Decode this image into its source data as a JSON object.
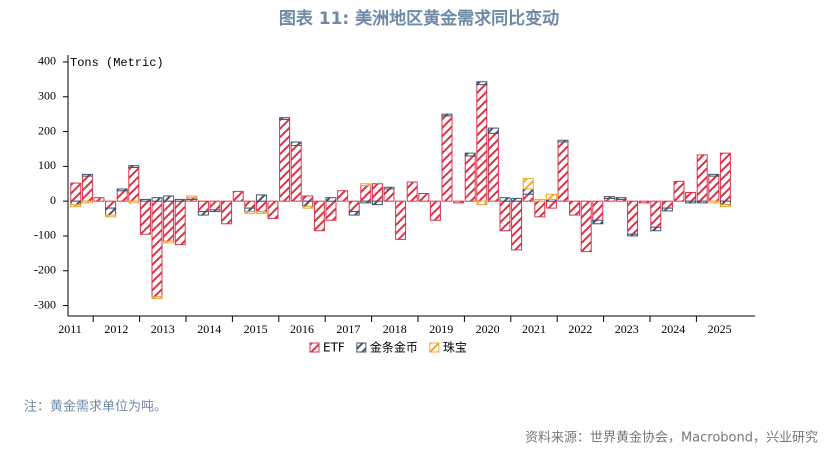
{
  "chart_data": {
    "type": "stacked-bar",
    "title": "图表 11: 美洲地区黄金需求同比变动",
    "y_label": "Tons (Metric)",
    "note": "注：黄金需求单位为吨。",
    "source": "资料来源：世界黄金协会，Macrobond，兴业研究",
    "categories": [
      "2011",
      null,
      null,
      null,
      "2012",
      null,
      null,
      null,
      "2013",
      null,
      null,
      null,
      "2014",
      null,
      null,
      null,
      "2015",
      null,
      null,
      null,
      "2016",
      null,
      null,
      null,
      "2017",
      null,
      null,
      null,
      "2018",
      null,
      null,
      null,
      "2019",
      null,
      null,
      null,
      "2020",
      null,
      null,
      null,
      "2021",
      null,
      null,
      null,
      "2022",
      null,
      null,
      null,
      "2023",
      null,
      null,
      null,
      "2024",
      null,
      null,
      null,
      "2025"
    ],
    "series": [
      {
        "name": "ETF",
        "color": "#d9344a",
        "values": [
          52,
          72,
          10,
          -20,
          30,
          97,
          -95,
          -275,
          -115,
          -125,
          5,
          -30,
          -25,
          -65,
          28,
          -20,
          -30,
          -50,
          235,
          160,
          15,
          -85,
          -55,
          30,
          -30,
          45,
          50,
          35,
          -110,
          55,
          22,
          -55,
          245,
          -5,
          130,
          335,
          195,
          -85,
          -140,
          20,
          -45,
          -20,
          170,
          -40,
          -145,
          -55,
          8,
          5,
          -95,
          -5,
          -75,
          -20,
          57,
          25,
          133,
          72,
          138
        ]
      },
      {
        "name": "金条金币",
        "color": "#44546a",
        "values": [
          -10,
          5,
          0,
          -20,
          5,
          5,
          5,
          10,
          15,
          5,
          5,
          -10,
          -5,
          0,
          0,
          -10,
          18,
          0,
          5,
          10,
          -15,
          0,
          10,
          0,
          -10,
          -5,
          -10,
          5,
          0,
          0,
          0,
          0,
          5,
          0,
          8,
          8,
          15,
          10,
          8,
          15,
          0,
          5,
          5,
          0,
          0,
          -10,
          5,
          5,
          -5,
          0,
          -10,
          -8,
          0,
          -5,
          -5,
          5,
          -10
        ]
      },
      {
        "name": "珠宝",
        "color": "#f0a830",
        "values": [
          -5,
          -5,
          0,
          -5,
          0,
          -5,
          0,
          -5,
          -5,
          0,
          5,
          0,
          0,
          0,
          0,
          -5,
          -5,
          0,
          0,
          0,
          -5,
          0,
          0,
          0,
          0,
          5,
          0,
          0,
          0,
          0,
          0,
          0,
          0,
          0,
          0,
          -10,
          0,
          0,
          0,
          30,
          5,
          15,
          0,
          0,
          0,
          0,
          0,
          0,
          0,
          0,
          0,
          0,
          0,
          0,
          0,
          -5,
          -5
        ]
      }
    ],
    "ylim": [
      -330,
      420
    ],
    "yticks": [
      -300,
      -200,
      -100,
      0,
      100,
      200,
      300,
      400
    ]
  }
}
